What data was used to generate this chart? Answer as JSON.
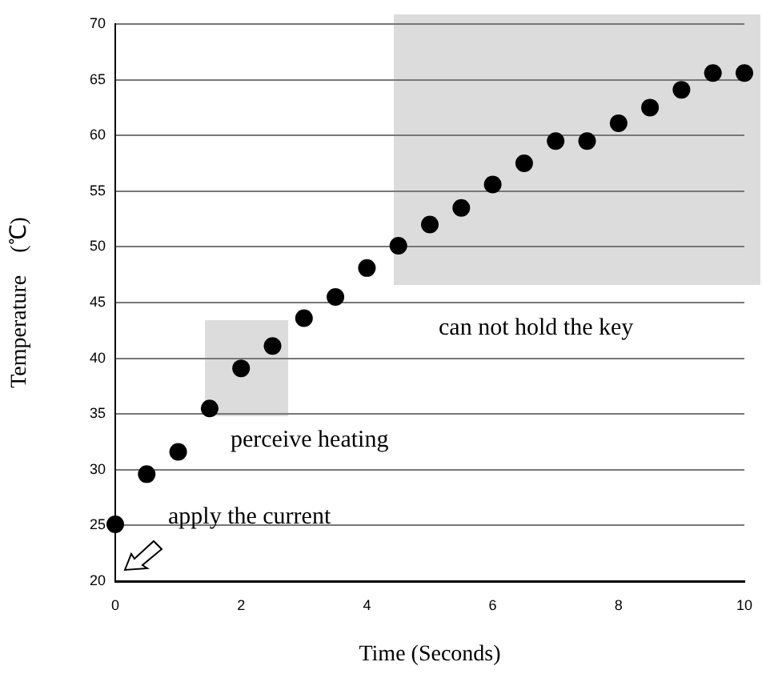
{
  "chart_data": {
    "type": "scatter",
    "xlabel": "Time (Seconds)",
    "ylabel": "Temperature　(℃)",
    "x": [
      0,
      0.5,
      1,
      1.5,
      2,
      2.5,
      3,
      3.5,
      4,
      4.5,
      5,
      5.5,
      6,
      6.5,
      7,
      7.5,
      8,
      8.5,
      9,
      9.5,
      10
    ],
    "series": [
      {
        "color": "#000000",
        "values": [
          25.1,
          29.6,
          31.6,
          35.5,
          39.1,
          41.1,
          43.6,
          45.5,
          48.1,
          50.1,
          52.0,
          53.5,
          55.6,
          57.5,
          59.5,
          59.5,
          61.1,
          62.5,
          64.1,
          65.6,
          65.6
        ]
      }
    ],
    "xlim": [
      0,
      10
    ],
    "xticks": [
      0,
      2,
      4,
      6,
      8,
      10
    ],
    "ylim": [
      20,
      70
    ],
    "yticks": [
      20,
      25,
      30,
      35,
      40,
      45,
      50,
      55,
      60,
      65,
      70
    ],
    "grid": "y",
    "marker": "circle",
    "legend": false,
    "annotations": [
      "apply the current",
      "perceive heating",
      "can not hold the key"
    ]
  }
}
